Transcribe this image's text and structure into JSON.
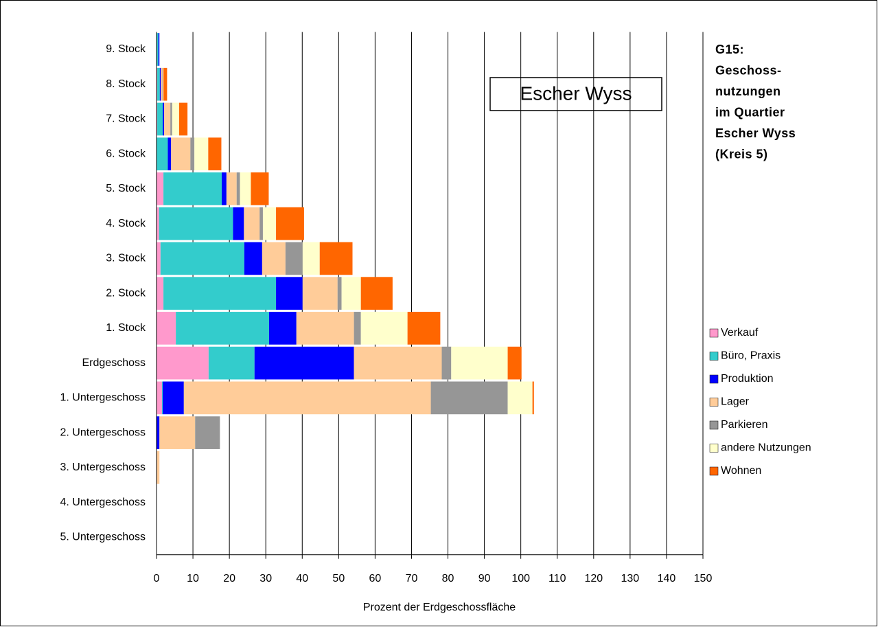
{
  "chart_data": {
    "type": "stacked_barh",
    "title": [
      "G15:",
      "Geschoss-",
      "nutzungen",
      "im Quartier",
      "Escher Wyss",
      "(Kreis 5)"
    ],
    "annotation": "Escher Wyss",
    "x_label": "Prozent der Erdgeschossfläche",
    "categories": [
      "9. Stock",
      "8. Stock",
      "7. Stock",
      "6. Stock",
      "5. Stock",
      "4. Stock",
      "3. Stock",
      "2. Stock",
      "1. Stock",
      "Erdgeschoss",
      "1. Untergeschoss",
      "2. Untergeschoss",
      "3. Untergeschoss",
      "4. Untergeschoss",
      "5. Untergeschoss"
    ],
    "series": [
      {
        "name": "Verkauf",
        "color": "#ff99cc",
        "values": [
          0,
          0.2,
          0.2,
          0.1,
          1.9,
          0.7,
          1.1,
          1.9,
          5.3,
          14.3,
          1.5,
          0,
          0,
          0,
          0
        ]
      },
      {
        "name": "Büro, Praxis",
        "color": "#33cccc",
        "values": [
          0.5,
          0.7,
          1.5,
          3.0,
          16.0,
          20.3,
          23.0,
          30.9,
          25.6,
          12.6,
          0.2,
          0,
          0,
          0,
          0
        ]
      },
      {
        "name": "Produktion",
        "color": "#0000ff",
        "values": [
          0.3,
          0.3,
          0.4,
          0.9,
          1.3,
          3.0,
          4.9,
          7.3,
          7.5,
          27.3,
          5.8,
          0.8,
          0,
          0,
          0
        ]
      },
      {
        "name": "Lager",
        "color": "#ffcc99",
        "values": [
          0,
          0.4,
          1.7,
          5.3,
          2.8,
          4.3,
          6.4,
          9.6,
          15.8,
          24.1,
          67.8,
          9.8,
          0.8,
          0,
          0
        ]
      },
      {
        "name": "Parkieren",
        "color": "#969696",
        "values": [
          0,
          0.1,
          0.5,
          1.1,
          0.9,
          0.9,
          4.7,
          1.1,
          1.9,
          2.6,
          21.1,
          6.8,
          0,
          0,
          0
        ]
      },
      {
        "name": "andere Nutzungen",
        "color": "#ffffcc",
        "values": [
          0,
          0.2,
          1.9,
          3.8,
          3.0,
          3.6,
          4.7,
          5.3,
          12.8,
          15.5,
          6.8,
          0,
          0,
          0,
          0
        ]
      },
      {
        "name": "Wohnen",
        "color": "#ff6600",
        "values": [
          0,
          1.0,
          2.3,
          3.6,
          4.9,
          7.7,
          9.0,
          8.7,
          9.0,
          3.8,
          0.4,
          0,
          0,
          0,
          0
        ]
      }
    ],
    "xlim": [
      0,
      150
    ],
    "xticks": [
      0,
      10,
      20,
      30,
      40,
      50,
      60,
      70,
      80,
      90,
      100,
      110,
      120,
      130,
      140,
      150
    ],
    "grid": true
  }
}
